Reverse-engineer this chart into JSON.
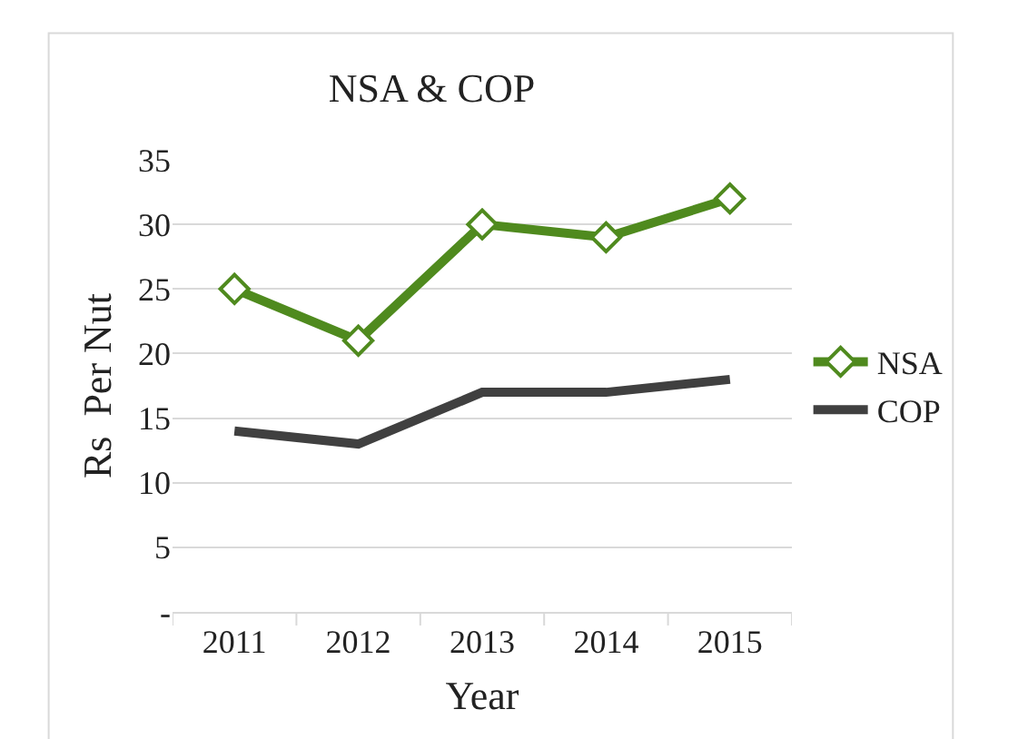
{
  "chart_data": {
    "type": "line",
    "title": "NSA & COP",
    "xlabel": "Year",
    "ylabel": "Rs  Per Nut",
    "categories": [
      "2011",
      "2012",
      "2013",
      "2014",
      "2015"
    ],
    "series": [
      {
        "name": "NSA",
        "color": "#4f8a1e",
        "marker": "diamond",
        "values": [
          25,
          21,
          30,
          29,
          32
        ]
      },
      {
        "name": "COP",
        "color": "#404040",
        "marker": "none",
        "values": [
          14,
          13,
          17,
          17,
          18
        ]
      }
    ],
    "ylim": [
      0,
      35
    ],
    "yticks": [
      {
        "value": 0,
        "label": "-"
      },
      5,
      10,
      15,
      20,
      25,
      30,
      35
    ],
    "grid": "y",
    "legend": "right",
    "line_style": "solid"
  }
}
